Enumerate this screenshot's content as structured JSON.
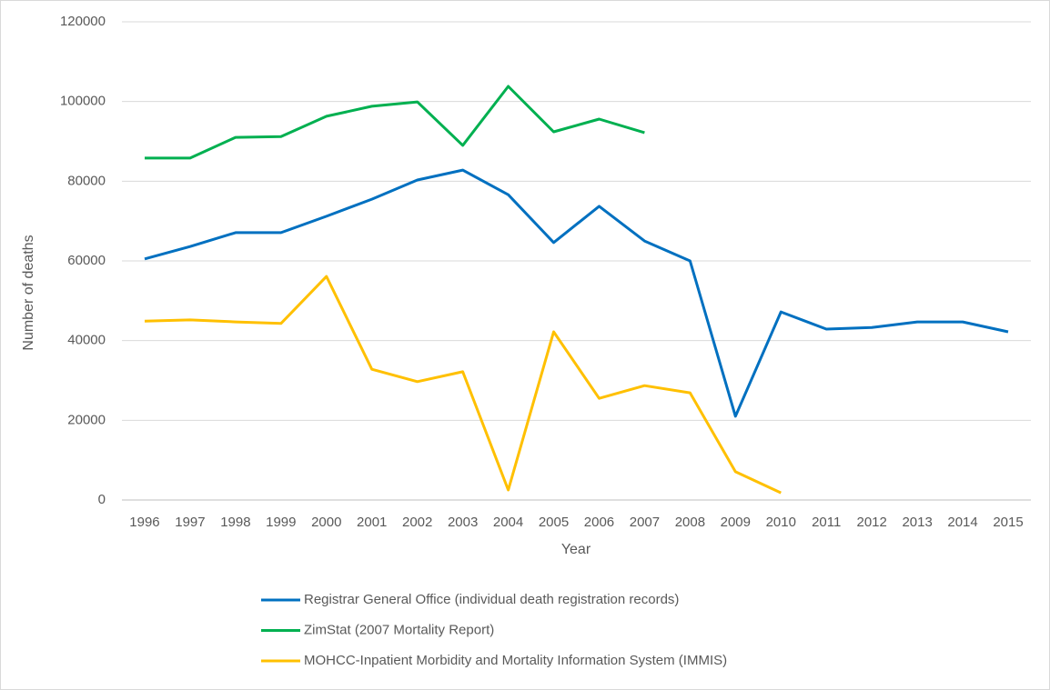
{
  "chart_data": {
    "type": "line",
    "x_label": "Year",
    "y_label": "Number of deaths",
    "categories": [
      "1996",
      "1997",
      "1998",
      "1999",
      "2000",
      "2001",
      "2002",
      "2003",
      "2004",
      "2005",
      "2006",
      "2007",
      "2008",
      "2009",
      "2010",
      "2011",
      "2012",
      "2013",
      "2014",
      "2015"
    ],
    "series": [
      {
        "name": "Registrar General Office (individual death registration records)",
        "color": "#0070c0",
        "values": [
          60500,
          63600,
          67100,
          67100,
          71200,
          75500,
          80300,
          82800,
          76600,
          64600,
          73700,
          65000,
          60000,
          21000,
          47200,
          42900,
          43300,
          44700,
          44700,
          42200
        ]
      },
      {
        "name": "ZimStat (2007 Mortality Report)",
        "color": "#00b050",
        "values": [
          85800,
          85800,
          91000,
          91200,
          96300,
          98800,
          99900,
          89000,
          103800,
          92400,
          95600,
          92200,
          null,
          null,
          null,
          null,
          null,
          null,
          null,
          null
        ]
      },
      {
        "name": "MOHCC-Inpatient Morbidity and Mortality Information System (IMMIS)",
        "color": "#ffc000",
        "values": [
          44900,
          45200,
          44700,
          44300,
          56100,
          32800,
          29700,
          32200,
          2500,
          42200,
          25500,
          28700,
          26900,
          7100,
          1800,
          null,
          null,
          null,
          null,
          null
        ]
      }
    ],
    "ylim": [
      0,
      120000
    ],
    "yticks": [
      0,
      20000,
      40000,
      60000,
      80000,
      100000,
      120000
    ],
    "grid": true
  }
}
